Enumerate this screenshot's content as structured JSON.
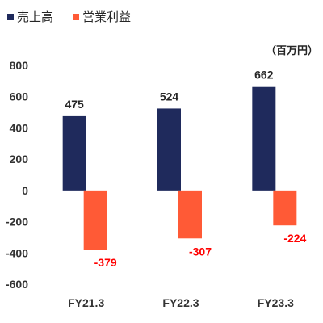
{
  "chart_data": {
    "type": "bar",
    "unit": "（百万円）",
    "categories": [
      "FY21.3",
      "FY22.3",
      "FY23.3"
    ],
    "series": [
      {
        "name": "売上高",
        "values": [
          475,
          524,
          662
        ],
        "color": "#1F2A5C",
        "label_color": "#262626"
      },
      {
        "name": "営業利益",
        "values": [
          -379,
          -307,
          -224
        ],
        "color": "#FF5A36",
        "label_color": "#FF0000"
      }
    ],
    "ylim": [
      -600,
      800
    ],
    "yticks": [
      800,
      600,
      400,
      200,
      0,
      -200,
      -400,
      -600
    ],
    "grid": false,
    "legend_position": "top-left",
    "data_labels": true
  }
}
